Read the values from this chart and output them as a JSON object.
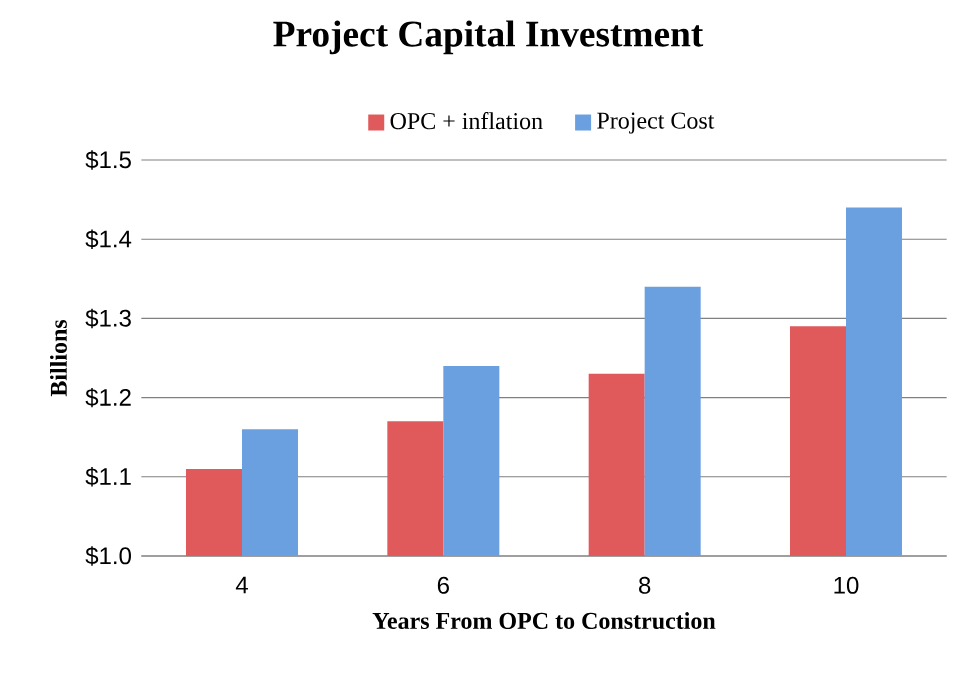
{
  "chart_data": {
    "type": "bar",
    "title": "Project Capital Investment",
    "xlabel": "Years From  OPC to Construction",
    "ylabel": "Billions",
    "categories": [
      "4",
      "6",
      "8",
      "10"
    ],
    "series": [
      {
        "name": "OPC + inflation",
        "color": "#e05a5c",
        "values": [
          1.11,
          1.17,
          1.23,
          1.29
        ]
      },
      {
        "name": "Project Cost",
        "color": "#6a9fe0",
        "values": [
          1.16,
          1.24,
          1.34,
          1.44
        ]
      }
    ],
    "ylim": [
      1.0,
      1.5
    ],
    "yticks": [
      {
        "value": 1.0,
        "label": "$1.0"
      },
      {
        "value": 1.1,
        "label": "$1.1"
      },
      {
        "value": 1.2,
        "label": "$1.2"
      },
      {
        "value": 1.3,
        "label": "$1.3"
      },
      {
        "value": 1.4,
        "label": "$1.4"
      },
      {
        "value": 1.5,
        "label": "$1.5"
      }
    ],
    "grid": "y",
    "legend": "top"
  }
}
